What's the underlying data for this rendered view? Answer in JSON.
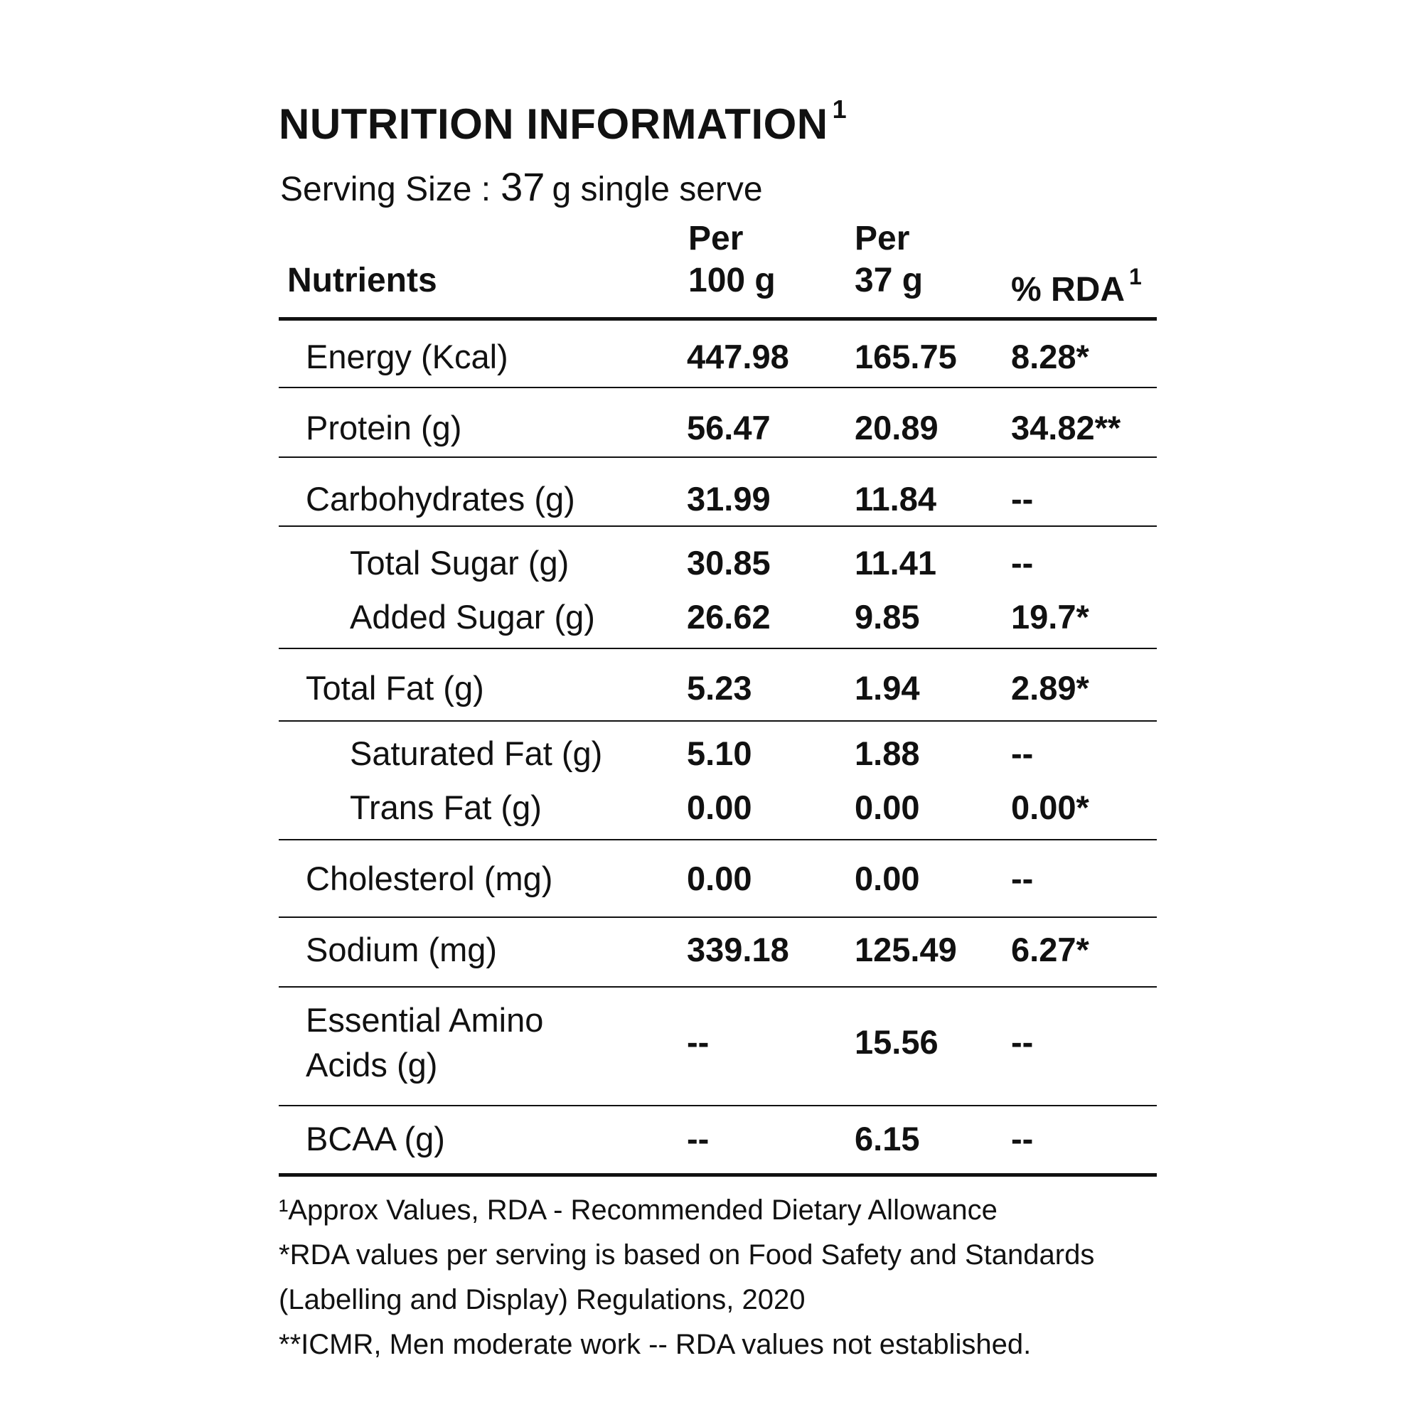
{
  "header": {
    "title": "NUTRITION INFORMATION",
    "title_sup": "1",
    "serving_label": "Serving Size :",
    "serving_amount": "37",
    "serving_unit": "g single serve"
  },
  "columns": {
    "nutrients": "Nutrients",
    "per100_line1": "Per",
    "per100_line2": "100 g",
    "perServe_line1": "Per",
    "perServe_line2": "37 g",
    "rda": "% RDA",
    "rda_sup": "1"
  },
  "rows": [
    {
      "name": "Energy (Kcal)",
      "per100": "447.98",
      "perServe": "165.75",
      "rda": "8.28*"
    },
    {
      "name": "Protein (g)",
      "per100": "56.47",
      "perServe": "20.89",
      "rda": "34.82**"
    },
    {
      "name": "Carbohydrates (g)",
      "per100": "31.99",
      "perServe": "11.84",
      "rda": "--"
    },
    {
      "name": "Total Sugar (g)",
      "per100": "30.85",
      "perServe": "11.41",
      "rda": "--"
    },
    {
      "name": "Added Sugar (g)",
      "per100": "26.62",
      "perServe": "9.85",
      "rda": "19.7*"
    },
    {
      "name": "Total Fat (g)",
      "per100": "5.23",
      "perServe": "1.94",
      "rda": "2.89*"
    },
    {
      "name": "Saturated Fat (g)",
      "per100": "5.10",
      "perServe": "1.88",
      "rda": "--"
    },
    {
      "name": "Trans Fat (g)",
      "per100": "0.00",
      "perServe": "0.00",
      "rda": "0.00*"
    },
    {
      "name": "Cholesterol (mg)",
      "per100": "0.00",
      "perServe": "0.00",
      "rda": "--"
    },
    {
      "name": "Sodium (mg)",
      "per100": "339.18",
      "perServe": "125.49",
      "rda": "6.27*"
    },
    {
      "name_line1": "Essential Amino",
      "name_line2": "Acids (g)",
      "per100": "--",
      "perServe": "15.56",
      "rda": "--"
    },
    {
      "name": "BCAA (g)",
      "per100": "--",
      "perServe": "6.15",
      "rda": "--"
    }
  ],
  "footnotes": [
    "¹Approx Values, RDA - Recommended Dietary Allowance",
    "*RDA values per serving is based on Food Safety and Standards",
    "(Labelling and Display) Regulations, 2020",
    "**ICMR, Men moderate work -- RDA values not established."
  ]
}
